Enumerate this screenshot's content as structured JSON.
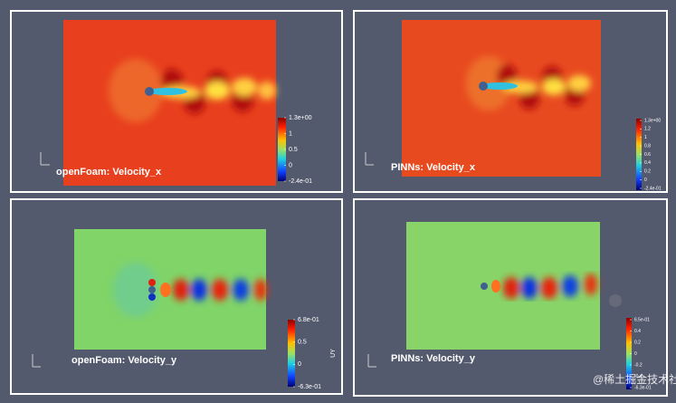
{
  "panels": [
    {
      "title": "openFoam: Velocity_x",
      "colorbar": [
        "1.3e+00",
        "1",
        "0.5",
        "0",
        "-2.4e-01"
      ]
    },
    {
      "title": "PINNs: Velocity_x",
      "colorbar": [
        "1.3e+00",
        "1.2",
        "1",
        "0.8",
        "0.6",
        "0.4",
        "0.2",
        "0",
        "-2.4e-01"
      ]
    },
    {
      "title": "openFoam: Velocity_y",
      "colorbar_title": "UY",
      "colorbar": [
        "6.8e-01",
        "0.5",
        "0",
        "-6.3e-01"
      ]
    },
    {
      "title": "PINNs: Velocity_y",
      "colorbar": [
        "6.5e-01",
        "0.4",
        "0.2",
        "0",
        "-0.2",
        "-0.4",
        "-6.3e-01"
      ]
    }
  ],
  "watermark": "@稀土掘金技术社区"
}
